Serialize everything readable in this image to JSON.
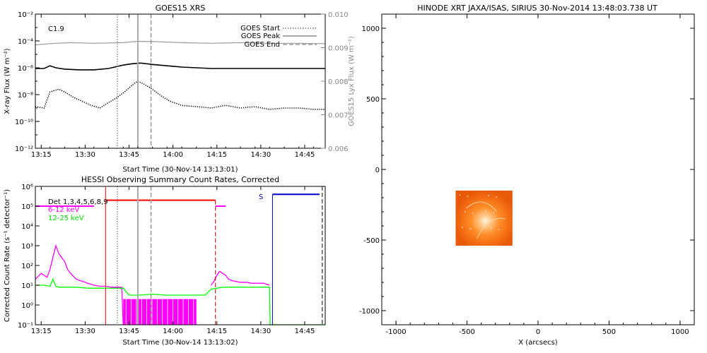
{
  "chart_data": [
    {
      "type": "line",
      "title": "GOES15 XRS",
      "xlabel": "Start Time (30-Nov-14 13:13:01)",
      "ylabel": "X-ray Flux (W m⁻²)",
      "ylabel_right": "GOES15 Lyx Flux (W m⁻²)",
      "class_label": "C1.9",
      "x_ticks": [
        "13:15",
        "13:30",
        "13:45",
        "14:00",
        "14:15",
        "14:30",
        "14:45"
      ],
      "x_tick_minutes": [
        2,
        17,
        32,
        47,
        62,
        77,
        92
      ],
      "xlim_minutes": [
        0,
        99
      ],
      "y_scale": "log",
      "ylim": [
        1e-12,
        0.01
      ],
      "y_ticks": [
        "10⁻¹²",
        "10⁻¹⁰",
        "10⁻⁸",
        "10⁻⁶",
        "10⁻⁴",
        "10⁻²"
      ],
      "y_tick_exponents": [
        -12,
        -10,
        -8,
        -6,
        -4,
        -2
      ],
      "y2lim": [
        0.006,
        0.01
      ],
      "y2_ticks": [
        "0.006",
        "0.007",
        "0.008",
        "0.009",
        "0.010"
      ],
      "y2_tick_values": [
        0.006,
        0.007,
        0.008,
        0.009,
        0.01
      ],
      "legend": [
        "GOES Start",
        "GOES Peak",
        "GOES End"
      ],
      "legend_position": "top-right",
      "markers_minutes": {
        "start": 28,
        "peak": 35,
        "end": 39.5
      },
      "series": [
        {
          "style": "lya",
          "color": "#999999",
          "log_y": false,
          "x": [
            0,
            5,
            12,
            20,
            30,
            35,
            40,
            50,
            60,
            70,
            80,
            90,
            99
          ],
          "y": [
            0.00908,
            0.00912,
            0.00915,
            0.00913,
            0.00915,
            0.00919,
            0.00918,
            0.00915,
            0.00913,
            0.00915,
            0.00913,
            0.00913,
            0.00912
          ]
        },
        {
          "style": "long",
          "color": "#000000",
          "log_y": true,
          "x": [
            0,
            3,
            5,
            7,
            10,
            15,
            20,
            25,
            30,
            33,
            36,
            40,
            45,
            50,
            55,
            60,
            70,
            80,
            90,
            99
          ],
          "y": [
            -6.05,
            -6.05,
            -5.85,
            -6.0,
            -6.1,
            -6.15,
            -6.15,
            -6.05,
            -5.8,
            -5.7,
            -5.65,
            -5.75,
            -5.85,
            -5.95,
            -6.0,
            -6.05,
            -6.05,
            -6.05,
            -6.05,
            -6.05
          ]
        },
        {
          "style": "short",
          "color": "#000000",
          "log_y": true,
          "x": [
            0,
            3,
            5,
            8,
            10,
            13,
            16,
            19,
            22,
            25,
            28,
            31,
            33,
            35,
            37,
            40,
            43,
            46,
            50,
            55,
            60,
            65,
            70,
            75,
            80,
            85,
            90,
            95,
            99
          ],
          "y": [
            -8.9,
            -9.0,
            -7.8,
            -7.6,
            -7.8,
            -8.2,
            -8.5,
            -8.8,
            -9.0,
            -8.6,
            -8.2,
            -7.7,
            -7.3,
            -7.0,
            -7.2,
            -7.6,
            -8.1,
            -8.5,
            -8.8,
            -8.9,
            -9.0,
            -8.8,
            -9.0,
            -8.9,
            -9.1,
            -9.0,
            -9.0,
            -9.1,
            -9.1
          ]
        }
      ]
    },
    {
      "type": "line",
      "title": "HESSI Observing Summary Count Rates, Corrected",
      "xlabel": "Start Time (30-Nov-14 13:13:02)",
      "ylabel": "Corrected Count Rate (s⁻¹ detector⁻¹)",
      "x_ticks": [
        "13:15",
        "13:30",
        "13:45",
        "14:00",
        "14:15",
        "14:30",
        "14:45"
      ],
      "x_tick_minutes": [
        2,
        17,
        32,
        47,
        62,
        77,
        92
      ],
      "xlim_minutes": [
        0,
        99
      ],
      "y_scale": "log",
      "ylim": [
        0.1,
        1000000.0
      ],
      "y_ticks": [
        "10⁻¹",
        "10⁰",
        "10¹",
        "10²",
        "10³",
        "10⁴",
        "10⁵",
        "10⁶"
      ],
      "y_tick_exponents": [
        -1,
        0,
        1,
        2,
        3,
        4,
        5,
        6
      ],
      "legend": [
        {
          "label": "Det 1,3,4,5,6,8,9",
          "color": "#000000"
        },
        {
          "label": "6-12 keV",
          "color": "#ff00ff"
        },
        {
          "label": "12-25 keV",
          "color": "#00ff00"
        }
      ],
      "legend_position": "top-left",
      "annotation_s": "S",
      "series": [
        {
          "name": "6-12 keV",
          "color": "#ff00ff",
          "x": [
            0,
            2,
            4,
            5,
            6,
            7,
            8,
            9,
            10,
            11,
            12,
            14,
            16,
            18,
            20,
            22,
            24,
            26,
            28,
            29.5,
            30
          ],
          "y": [
            1.3,
            1.6,
            1.4,
            1.8,
            2.4,
            3.0,
            2.6,
            2.4,
            2.2,
            1.8,
            1.6,
            1.3,
            1.2,
            1.1,
            1.0,
            0.95,
            0.95,
            0.9,
            0.9,
            0.9,
            -1
          ]
        },
        {
          "name": "6-12 keV (late)",
          "color": "#ff00ff",
          "x": [
            60,
            61,
            62,
            63,
            64,
            65,
            66,
            67,
            68,
            70,
            72,
            74,
            76,
            78,
            79,
            80
          ],
          "y": [
            1.0,
            1.2,
            1.5,
            1.7,
            1.6,
            1.5,
            1.3,
            1.25,
            1.2,
            1.15,
            1.15,
            1.1,
            1.1,
            1.1,
            1.05,
            1.0
          ]
        },
        {
          "name": "12-25 keV",
          "color": "#00ff00",
          "x": [
            0,
            3,
            5,
            6,
            7,
            8,
            10,
            14,
            18,
            22,
            26,
            30,
            32,
            36,
            40,
            44,
            48,
            52,
            55,
            58,
            60,
            64,
            68,
            72,
            76,
            79,
            80,
            80.2,
            99
          ],
          "y": [
            1.0,
            1.0,
            0.95,
            1.3,
            0.95,
            0.9,
            0.9,
            0.9,
            0.85,
            0.85,
            0.85,
            0.85,
            0.5,
            0.5,
            0.55,
            0.5,
            0.5,
            0.5,
            0.5,
            0.5,
            0.8,
            0.9,
            0.9,
            0.9,
            0.9,
            0.9,
            0.9,
            -1,
            -1
          ]
        }
      ],
      "attenuator_bar": {
        "x0": 30,
        "x1": 55,
        "level": 0.3,
        "color": "#ff00ff"
      },
      "flag_lines": {
        "red_solid": 24,
        "red_dashed": 61.5,
        "blue_solid": 81,
        "black_dashed": 98
      },
      "markers_minutes": {
        "start": 28,
        "peak": 35,
        "end": 39.5
      }
    },
    {
      "type": "heatmap",
      "title": "HINODE XRT JAXA/ISAS, SIRIUS 30-Nov-2014 13:48:03.738 UT",
      "xlabel": "X (arcsecs)",
      "ylabel": "",
      "x_ticks": [
        -1000,
        -500,
        0,
        500,
        1000
      ],
      "y_ticks": [
        -1000,
        -500,
        0,
        500,
        1000
      ],
      "xlim": [
        -1100,
        1100
      ],
      "ylim": [
        -1100,
        1100
      ],
      "image_extent": {
        "x0": -580,
        "x1": -180,
        "y0": -540,
        "y1": -150
      },
      "colormap": "hinode-orange"
    }
  ]
}
